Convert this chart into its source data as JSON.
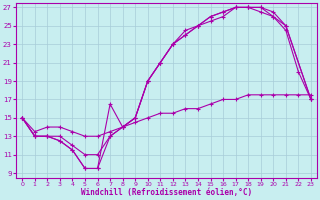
{
  "xlabel": "Windchill (Refroidissement éolien,°C)",
  "xlim": [
    -0.5,
    23.5
  ],
  "ylim": [
    8.5,
    27.5
  ],
  "yticks": [
    9,
    11,
    13,
    15,
    17,
    19,
    21,
    23,
    25,
    27
  ],
  "xticks": [
    0,
    1,
    2,
    3,
    4,
    5,
    6,
    7,
    8,
    9,
    10,
    11,
    12,
    13,
    14,
    15,
    16,
    17,
    18,
    19,
    20,
    21,
    22,
    23
  ],
  "bg_color": "#c8eef0",
  "grid_color": "#a8ccd8",
  "line_color": "#aa00aa",
  "curve1_x": [
    0,
    1,
    2,
    3,
    4,
    5,
    6,
    7,
    8,
    9,
    10,
    11,
    12,
    13,
    14,
    15,
    16,
    17,
    18,
    19,
    20,
    21,
    22,
    23
  ],
  "curve1_y": [
    15,
    13,
    13,
    12.5,
    11.5,
    9.5,
    9.5,
    16.5,
    14,
    15,
    19,
    21,
    23,
    24.5,
    25,
    26,
    26.5,
    27,
    27,
    27,
    26,
    24.5,
    20,
    17
  ],
  "curve2_x": [
    0,
    1,
    2,
    3,
    4,
    5,
    6,
    7,
    8,
    9,
    10,
    11,
    12,
    13,
    14,
    15,
    16,
    17,
    18,
    19,
    20,
    21,
    23
  ],
  "curve2_y": [
    15,
    13,
    13,
    12.5,
    11.5,
    9.5,
    9.5,
    13,
    14,
    15,
    19,
    21,
    23,
    24,
    25,
    26,
    26.5,
    27,
    27,
    27,
    26.5,
    25,
    17
  ],
  "curve3_x": [
    0,
    1,
    2,
    3,
    4,
    5,
    6,
    7,
    8,
    9,
    10,
    11,
    12,
    13,
    14,
    15,
    16,
    17,
    18,
    19,
    20,
    21,
    23
  ],
  "curve3_y": [
    15,
    13,
    13,
    13,
    12,
    11,
    11,
    13,
    14,
    15,
    19,
    21,
    23,
    24,
    25,
    25.5,
    26,
    27,
    27,
    26.5,
    26,
    25,
    17
  ],
  "curve4_x": [
    0,
    1,
    2,
    3,
    4,
    5,
    6,
    7,
    8,
    9,
    10,
    11,
    12,
    13,
    14,
    15,
    16,
    17,
    18,
    19,
    20,
    21,
    22,
    23
  ],
  "curve4_y": [
    15,
    13.5,
    14,
    14,
    13.5,
    13,
    13,
    13.5,
    14,
    14.5,
    15,
    15.5,
    15.5,
    16,
    16,
    16.5,
    17,
    17,
    17.5,
    17.5,
    17.5,
    17.5,
    17.5,
    17.5
  ]
}
